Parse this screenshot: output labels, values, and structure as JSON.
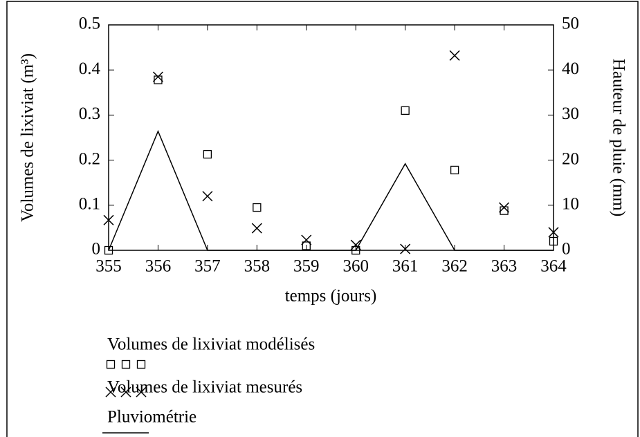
{
  "chart_data": {
    "type": "scatter",
    "xlabel": "temps (jours)",
    "ylabel": "Volumes de lixiviat (m³)",
    "y2label": "Hauteur de pluie (mm)",
    "x": [
      355,
      356,
      357,
      358,
      359,
      360,
      361,
      362,
      363,
      364
    ],
    "xlim": [
      355,
      364
    ],
    "xticks": [
      355,
      356,
      357,
      358,
      359,
      360,
      361,
      362,
      363,
      364
    ],
    "ylim": [
      0,
      0.5
    ],
    "yticks": [
      0,
      0.1,
      0.2,
      0.3,
      0.4,
      0.5
    ],
    "y2lim": [
      0,
      50
    ],
    "y2ticks": [
      0,
      10,
      20,
      30,
      40,
      50
    ],
    "series": [
      {
        "name": "Volumes de lixiviat modélisés",
        "color": "#000000",
        "marker": "square",
        "values": [
          0,
          0.378,
          0.213,
          0.095,
          0.01,
          0,
          0.31,
          0.178,
          0.088,
          0.02
        ]
      },
      {
        "name": "Volumes de lixiviat mesurés",
        "color": "#000000",
        "marker": "x",
        "values": [
          0.067,
          0.385,
          0.12,
          0.049,
          0.023,
          0.012,
          0.003,
          0.432,
          0.095,
          0.04
        ]
      },
      {
        "name": "Pluviométrie",
        "color": "#000000",
        "marker": "line",
        "axis": "y2",
        "values": [
          0,
          26.4,
          0,
          0,
          0,
          0,
          19.2,
          0,
          0,
          0
        ]
      }
    ]
  }
}
